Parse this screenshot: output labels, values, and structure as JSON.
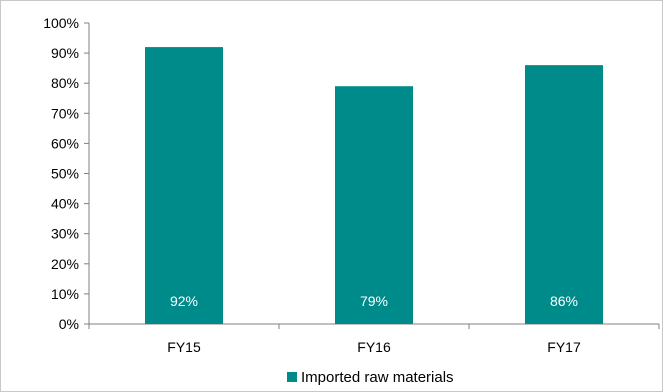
{
  "chart_data": {
    "type": "bar",
    "categories": [
      "FY15",
      "FY16",
      "FY17"
    ],
    "series": [
      {
        "name": "Imported raw materials",
        "values": [
          92,
          79,
          86
        ],
        "color": "#008B8B"
      }
    ],
    "data_labels": [
      "92%",
      "79%",
      "86%"
    ],
    "ylim": [
      0,
      100
    ],
    "y_ticks": [
      0,
      10,
      20,
      30,
      40,
      50,
      60,
      70,
      80,
      90,
      100
    ],
    "y_tick_labels": [
      "0%",
      "10%",
      "20%",
      "30%",
      "40%",
      "50%",
      "60%",
      "70%",
      "80%",
      "90%",
      "100%"
    ],
    "grid": false,
    "legend_position": "bottom",
    "title": "",
    "xlabel": "",
    "ylabel": ""
  }
}
